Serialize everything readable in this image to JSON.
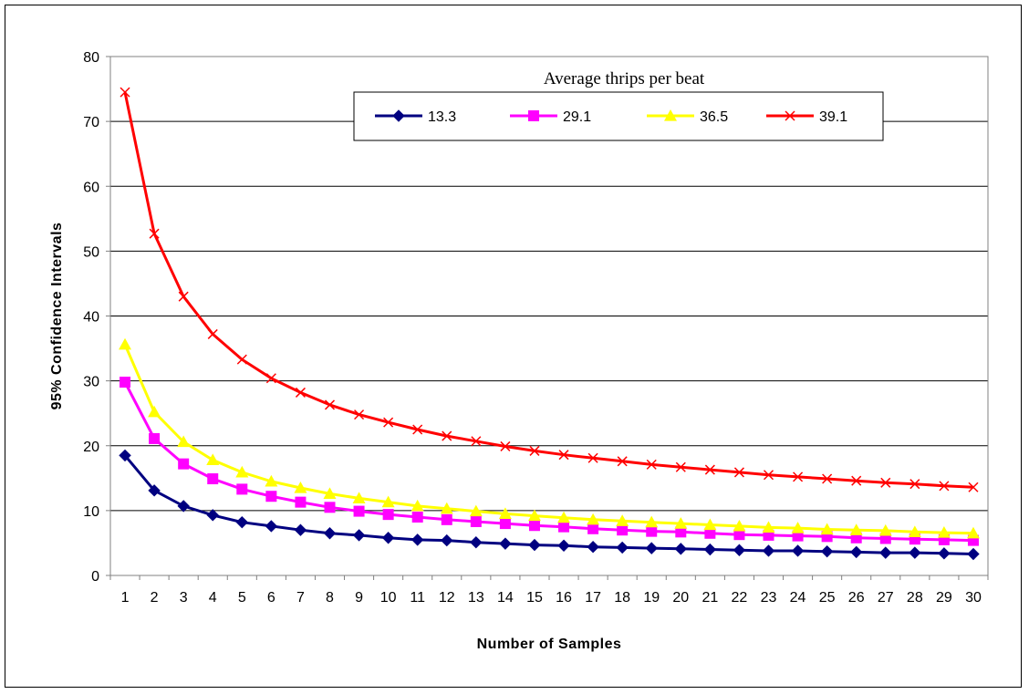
{
  "chart_data": {
    "type": "line",
    "title": "",
    "xlabel": "Number of Samples",
    "ylabel": "95% Confidence Intervals",
    "legend_title": "Average thrips per beat",
    "legend_position": "top-right",
    "grid": "horizontal",
    "xlim": [
      1,
      30
    ],
    "ylim": [
      0,
      80
    ],
    "y_ticks": [
      0,
      10,
      20,
      30,
      40,
      50,
      60,
      70,
      80
    ],
    "x": [
      1,
      2,
      3,
      4,
      5,
      6,
      7,
      8,
      9,
      10,
      11,
      12,
      13,
      14,
      15,
      16,
      17,
      18,
      19,
      20,
      21,
      22,
      23,
      24,
      25,
      26,
      27,
      28,
      29,
      30
    ],
    "series": [
      {
        "name": "13.3",
        "color": "#000080",
        "marker": "diamond",
        "values": [
          18.5,
          13.1,
          10.7,
          9.3,
          8.2,
          7.6,
          7.0,
          6.5,
          6.2,
          5.8,
          5.5,
          5.4,
          5.1,
          4.9,
          4.7,
          4.6,
          4.4,
          4.3,
          4.2,
          4.1,
          4.0,
          3.9,
          3.8,
          3.8,
          3.7,
          3.6,
          3.5,
          3.5,
          3.4,
          3.3
        ]
      },
      {
        "name": "29.1",
        "color": "#FF00FF",
        "marker": "square",
        "values": [
          29.8,
          21.1,
          17.2,
          14.9,
          13.3,
          12.2,
          11.3,
          10.5,
          9.9,
          9.4,
          9.0,
          8.6,
          8.3,
          8.0,
          7.7,
          7.5,
          7.2,
          7.0,
          6.8,
          6.7,
          6.5,
          6.3,
          6.2,
          6.1,
          6.0,
          5.8,
          5.7,
          5.6,
          5.5,
          5.4
        ]
      },
      {
        "name": "36.5",
        "color": "#FFFF00",
        "marker": "triangle",
        "values": [
          35.6,
          25.2,
          20.6,
          17.8,
          15.9,
          14.5,
          13.5,
          12.6,
          11.9,
          11.3,
          10.7,
          10.3,
          9.9,
          9.5,
          9.2,
          8.9,
          8.6,
          8.4,
          8.2,
          8.0,
          7.8,
          7.6,
          7.4,
          7.3,
          7.1,
          7.0,
          6.9,
          6.7,
          6.6,
          6.5
        ]
      },
      {
        "name": "39.1",
        "color": "#FF0000",
        "marker": "x",
        "values": [
          74.5,
          52.7,
          43.0,
          37.2,
          33.3,
          30.4,
          28.2,
          26.3,
          24.8,
          23.6,
          22.5,
          21.5,
          20.7,
          19.9,
          19.2,
          18.6,
          18.1,
          17.6,
          17.1,
          16.7,
          16.3,
          15.9,
          15.5,
          15.2,
          14.9,
          14.6,
          14.3,
          14.1,
          13.8,
          13.6
        ]
      }
    ]
  }
}
